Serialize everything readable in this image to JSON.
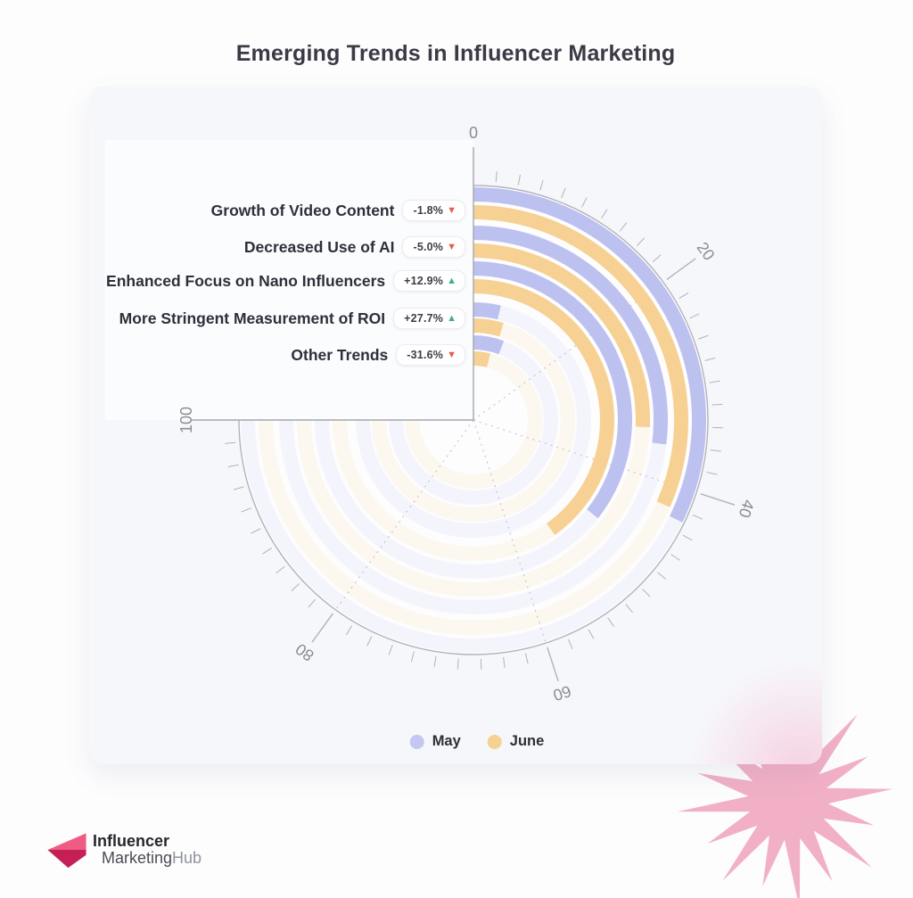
{
  "page": {
    "title": "Emerging Trends in Influencer Marketing"
  },
  "chart_data": {
    "type": "radial-bar",
    "title": "Emerging Trends in Influencer Marketing",
    "axis": {
      "min": 0,
      "max": 100,
      "tick_labels": [
        "0",
        "20",
        "40",
        "60",
        "80",
        "100"
      ],
      "minor_tick_step": 2,
      "degrees_per_unit": 2.7,
      "sweep_degrees": 270,
      "start": "top",
      "direction": "clockwise"
    },
    "categories": [
      "Growth of Video Content",
      "Decreased Use of AI",
      "Enhanced Focus on Nano Influencers",
      "More Stringent Measurement of ROI",
      "Other Trends"
    ],
    "series": [
      {
        "name": "May",
        "color": "#bdc1ef",
        "values": [
          43.0,
          36.0,
          47.5,
          5.0,
          7.8
        ]
      },
      {
        "name": "June",
        "color": "#f6d193",
        "values": [
          42.2,
          34.2,
          53.6,
          6.4,
          5.3
        ]
      }
    ],
    "deltas": [
      {
        "label": "-1.8%",
        "direction": "down"
      },
      {
        "label": "-5.0%",
        "direction": "down"
      },
      {
        "label": "+12.9%",
        "direction": "up"
      },
      {
        "label": "+27.7%",
        "direction": "up"
      },
      {
        "label": "-31.6%",
        "direction": "down"
      }
    ],
    "legend_position": "bottom"
  },
  "legend": {
    "items": [
      {
        "label": "May",
        "color": "#c3c7f1"
      },
      {
        "label": "June",
        "color": "#f5d28f"
      }
    ]
  },
  "icons": {
    "up": "▲",
    "down": "▼"
  },
  "logo": {
    "line1": "Influencer",
    "line2_a": "Marketing",
    "line2_b": "Hub"
  },
  "colors": {
    "delta_up": "#3fae85",
    "delta_down": "#e2604d",
    "bar_may": "#bdc1ef",
    "bar_june": "#f6d193",
    "rim": "#b2b2bb",
    "axis_line": "#a6a6af",
    "dashed_grid": "#c6c6ce",
    "axis_label": "#8b8b95",
    "card_bg": "#f6f7fa",
    "chart_bg": "#fdfdfe",
    "panel_bg": "#fbfcfe",
    "star_pink": "#f1a7c1",
    "logo_pink_light": "#ee5c84",
    "logo_pink_dark": "#c51f56"
  }
}
